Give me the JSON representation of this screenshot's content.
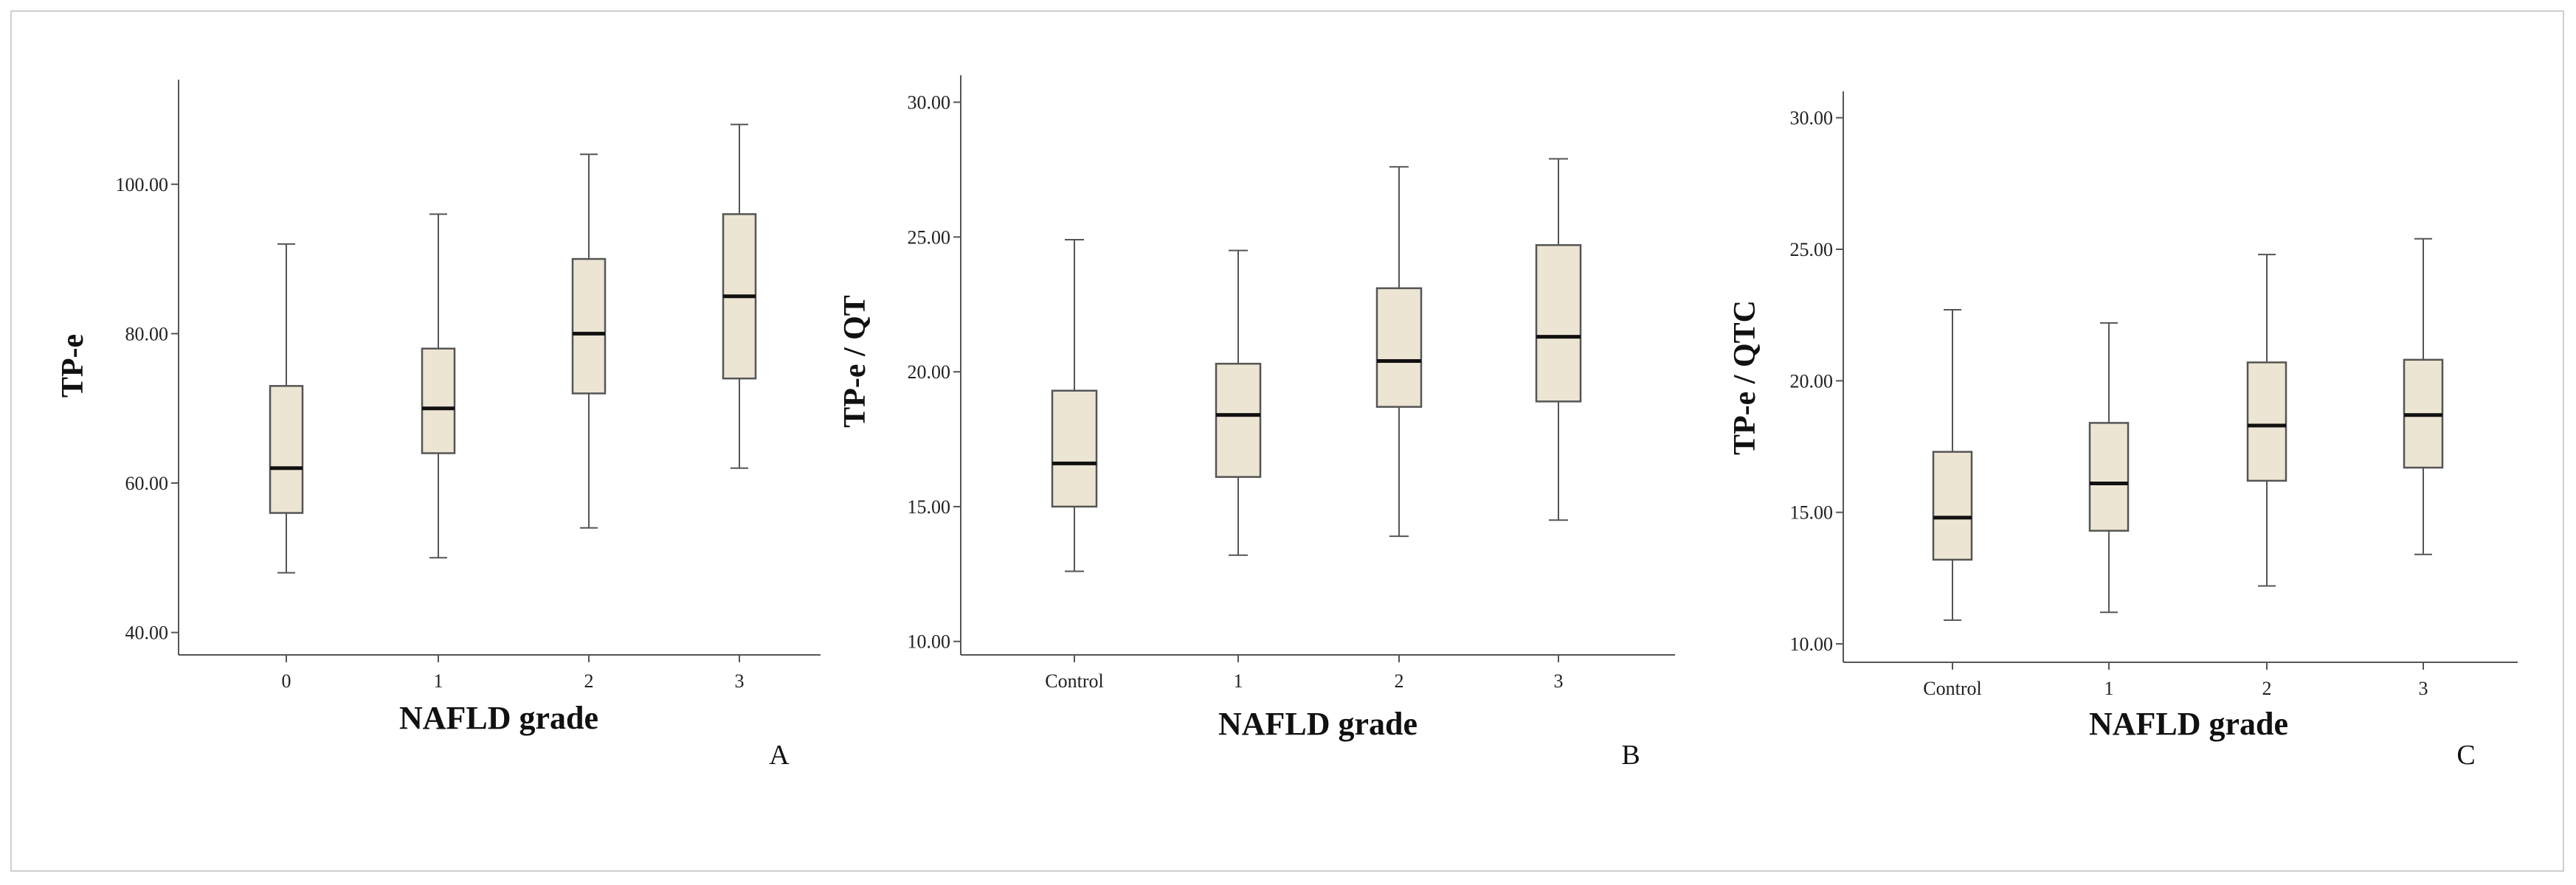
{
  "figure": {
    "background": "#ffffff",
    "box_fill": "#ede5d3",
    "stroke": "#555555",
    "median_stroke": "#111111"
  },
  "chart_data": [
    {
      "type": "box",
      "panel": "A",
      "ylabel": "TP-e",
      "xlabel": "NAFLD grade",
      "categories": [
        "0",
        "1",
        "2",
        "3"
      ],
      "ylim": [
        37,
        114
      ],
      "yticks": [
        40,
        60,
        80,
        100
      ],
      "ytick_labels": [
        "40.00",
        "60.00",
        "80.00",
        "100.00"
      ],
      "boxes": [
        {
          "min": 48,
          "q1": 56,
          "median": 62,
          "q3": 73,
          "max": 92
        },
        {
          "min": 50,
          "q1": 64,
          "median": 70,
          "q3": 78,
          "max": 96
        },
        {
          "min": 54,
          "q1": 72,
          "median": 80,
          "q3": 90,
          "max": 104
        },
        {
          "min": 62,
          "q1": 74,
          "median": 85,
          "q3": 96,
          "max": 108
        }
      ]
    },
    {
      "type": "box",
      "panel": "B",
      "ylabel": "TP-e / QT",
      "xlabel": "NAFLD grade",
      "categories": [
        "Control",
        "1",
        "2",
        "3"
      ],
      "ylim": [
        9.5,
        31
      ],
      "yticks": [
        10,
        15,
        20,
        25,
        30
      ],
      "ytick_labels": [
        "10.00",
        "15.00",
        "20.00",
        "25.00",
        "30.00"
      ],
      "boxes": [
        {
          "min": 12.6,
          "q1": 15.0,
          "median": 16.6,
          "q3": 19.3,
          "max": 24.9
        },
        {
          "min": 13.2,
          "q1": 16.1,
          "median": 18.4,
          "q3": 20.3,
          "max": 24.5
        },
        {
          "min": 13.9,
          "q1": 18.7,
          "median": 20.4,
          "q3": 23.1,
          "max": 27.6
        },
        {
          "min": 14.5,
          "q1": 18.9,
          "median": 21.3,
          "q3": 24.7,
          "max": 27.9
        }
      ]
    },
    {
      "type": "box",
      "panel": "C",
      "ylabel": "TP-e / QTC",
      "xlabel": "NAFLD grade",
      "categories": [
        "Control",
        "1",
        "2",
        "3"
      ],
      "ylim": [
        9.3,
        31
      ],
      "yticks": [
        10,
        15,
        20,
        25,
        30
      ],
      "ytick_labels": [
        "10.00",
        "15.00",
        "20.00",
        "25.00",
        "30.00"
      ],
      "boxes": [
        {
          "min": 10.9,
          "q1": 13.2,
          "median": 14.8,
          "q3": 17.3,
          "max": 22.7
        },
        {
          "min": 11.2,
          "q1": 14.3,
          "median": 16.1,
          "q3": 18.4,
          "max": 22.2
        },
        {
          "min": 12.2,
          "q1": 16.2,
          "median": 18.3,
          "q3": 20.7,
          "max": 24.8
        },
        {
          "min": 13.4,
          "q1": 16.7,
          "median": 18.7,
          "q3": 20.8,
          "max": 25.4
        }
      ]
    }
  ]
}
